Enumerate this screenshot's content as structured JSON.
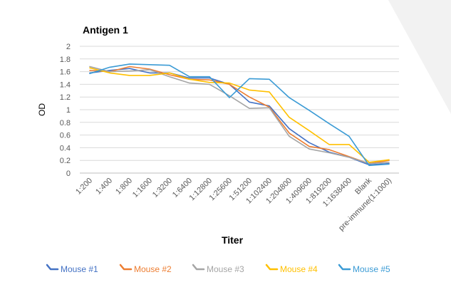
{
  "chart_data": {
    "type": "line",
    "title": "Antigen 1",
    "xlabel": "Titer",
    "ylabel": "OD",
    "ylim": [
      0,
      2
    ],
    "yticks": [
      "0",
      "0.2",
      "0.4",
      "0.6",
      "0.8",
      "1",
      "1.2",
      "1.4",
      "1.6",
      "1.8",
      "2"
    ],
    "grid": true,
    "legend_position": "bottom",
    "categories": [
      "1:200",
      "1:400",
      "1:800",
      "1:1600",
      "1:3200",
      "1:6400",
      "1:12800",
      "1:25600",
      "1:51200",
      "1:102400",
      "1:204800",
      "1:409600",
      "1:819200",
      "1:1638400",
      "Blank",
      "pre-immune(1:1000)"
    ],
    "series": [
      {
        "name": "Mouse #1",
        "color": "#4472C4",
        "values": [
          1.58,
          1.62,
          1.65,
          1.58,
          1.58,
          1.5,
          1.5,
          1.4,
          1.12,
          1.06,
          0.7,
          0.48,
          0.33,
          0.25,
          0.13,
          0.15
        ]
      },
      {
        "name": "Mouse #2",
        "color": "#ED7D31",
        "values": [
          1.62,
          1.6,
          1.68,
          1.64,
          1.55,
          1.48,
          1.47,
          1.4,
          1.2,
          1.04,
          0.63,
          0.42,
          0.37,
          0.26,
          0.15,
          0.2
        ]
      },
      {
        "name": "Mouse #3",
        "color": "#A5A5A5",
        "values": [
          1.68,
          1.6,
          1.61,
          1.63,
          1.52,
          1.42,
          1.4,
          1.22,
          1.02,
          1.03,
          0.58,
          0.38,
          0.32,
          0.25,
          0.15,
          0.17
        ]
      },
      {
        "name": "Mouse #4",
        "color": "#FFC000",
        "values": [
          1.66,
          1.58,
          1.54,
          1.54,
          1.58,
          1.48,
          1.43,
          1.42,
          1.31,
          1.28,
          0.88,
          0.67,
          0.45,
          0.45,
          0.17,
          0.21
        ]
      },
      {
        "name": "Mouse #5",
        "color": "#3B9BD5",
        "values": [
          1.57,
          1.67,
          1.72,
          1.71,
          1.7,
          1.52,
          1.52,
          1.19,
          1.49,
          1.48,
          1.19,
          0.99,
          0.78,
          0.58,
          0.12,
          0.14
        ]
      }
    ]
  }
}
